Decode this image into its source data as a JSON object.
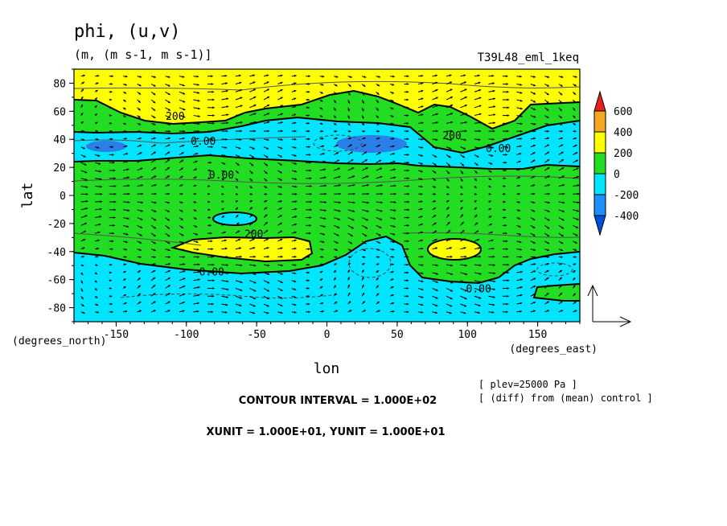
{
  "chart_data": {
    "type": "heatmap",
    "title": "phi, (u,v)",
    "units_line": "(m, (m s-1, m s-1)]",
    "experiment": "T39L48_eml_1keq",
    "xlabel": "lon",
    "ylabel": "lat",
    "x_unit_note": "(degrees_east)",
    "y_unit_note": "(degrees_north)",
    "xlim": [
      -180,
      180
    ],
    "ylim": [
      -90,
      90
    ],
    "x_ticks": [
      -150,
      -100,
      -50,
      0,
      50,
      100,
      150
    ],
    "y_ticks": [
      80,
      60,
      40,
      20,
      0,
      -20,
      -40,
      -60,
      -80
    ],
    "x_tick_labels": [
      "-150",
      "-100",
      "-50",
      "0",
      "50",
      "100",
      "150"
    ],
    "y_tick_labels": [
      "80",
      "60",
      "40",
      "20",
      "0",
      "-20",
      "-40",
      "-60",
      "-80"
    ],
    "contour_interval": 100,
    "contour_labels": [
      {
        "text": "200",
        "lon": -108,
        "lat": 54
      },
      {
        "text": "0.00",
        "lon": -88,
        "lat": 36
      },
      {
        "text": "0.00",
        "lon": -75,
        "lat": 12
      },
      {
        "text": "200",
        "lon": 89,
        "lat": 40
      },
      {
        "text": "0.00",
        "lon": 122,
        "lat": 31
      },
      {
        "text": "200",
        "lon": -52,
        "lat": -30
      },
      {
        "text": "0.00",
        "lon": -82,
        "lat": -57
      },
      {
        "text": "0.00",
        "lon": 108,
        "lat": -69
      }
    ],
    "colorbar": {
      "levels": [
        "600",
        "400",
        "200",
        "0",
        "-200",
        "-400"
      ],
      "colors": [
        "#e82020",
        "#f5a623",
        "#ffff00",
        "#22dd22",
        "#00e5ff",
        "#1e90ff",
        "#0050e0"
      ]
    },
    "fill_bands": {
      "yellow": "#ffff00",
      "green": "#22dd22",
      "cyan": "#00e5ff",
      "blue": "#2a7fe8"
    },
    "grid": false,
    "legend_position": "right"
  },
  "text": {
    "contour_interval": "CONTOUR INTERVAL = 1.000E+02",
    "units": "XUNIT = 1.000E+01, YUNIT = 1.000E+01",
    "plev": "[ plev=25000 Pa ]",
    "diff": "[ (diff) from (mean) control ]"
  }
}
